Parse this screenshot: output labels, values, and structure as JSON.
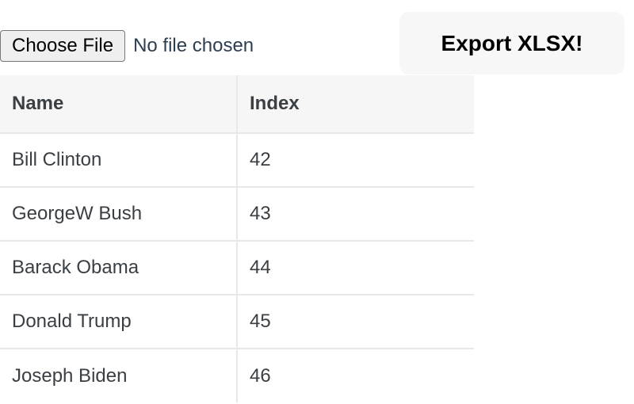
{
  "file_input": {
    "button_label": "Choose File",
    "status": "No file chosen"
  },
  "export_button": {
    "label": "Export XLSX!"
  },
  "table": {
    "headers": [
      "Name",
      "Index"
    ],
    "rows": [
      [
        "Bill Clinton",
        "42"
      ],
      [
        "GeorgeW Bush",
        "43"
      ],
      [
        "Barack Obama",
        "44"
      ],
      [
        "Donald Trump",
        "45"
      ],
      [
        "Joseph Biden",
        "46"
      ]
    ]
  }
}
